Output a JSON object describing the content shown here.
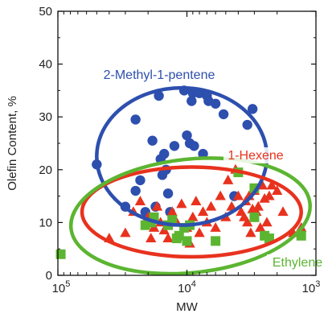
{
  "chart_data": {
    "type": "scatter",
    "xlabel": "MW",
    "ylabel": "Olefin Content, %",
    "x_scale": "log",
    "x_reversed": true,
    "xlim": [
      100000,
      1000
    ],
    "ylim": [
      0,
      50
    ],
    "x_ticks": [
      {
        "value": 100000,
        "label_base": "10",
        "label_exp": "5"
      },
      {
        "value": 10000,
        "label_base": "10",
        "label_exp": "4"
      },
      {
        "value": 1000,
        "label_base": "10",
        "label_exp": "3"
      }
    ],
    "y_ticks": [
      {
        "value": 0,
        "label": "0"
      },
      {
        "value": 10,
        "label": "10"
      },
      {
        "value": 20,
        "label": "20"
      },
      {
        "value": 30,
        "label": "30"
      },
      {
        "value": 40,
        "label": "40"
      },
      {
        "value": 50,
        "label": "50"
      }
    ],
    "grid": false,
    "series": [
      {
        "name": "2-Methyl-1-pentene",
        "marker": "circle",
        "color": "#2d4fae",
        "ellipse": {
          "cx": 11000,
          "cy": 22.5,
          "x_min": 50000,
          "x_max": 2400,
          "y_min": 9.5,
          "y_max": 35.5
        },
        "points": [
          [
            50000,
            21
          ],
          [
            30000,
            13
          ],
          [
            25000,
            29.5
          ],
          [
            25000,
            16
          ],
          [
            23000,
            18
          ],
          [
            21000,
            12
          ],
          [
            18500,
            25.5
          ],
          [
            17500,
            13
          ],
          [
            16500,
            34
          ],
          [
            16000,
            22
          ],
          [
            15500,
            19
          ],
          [
            15000,
            23
          ],
          [
            14500,
            20
          ],
          [
            14000,
            15.5
          ],
          [
            13500,
            12
          ],
          [
            12500,
            24.5
          ],
          [
            10500,
            35
          ],
          [
            10000,
            26.5
          ],
          [
            9500,
            25
          ],
          [
            9200,
            33
          ],
          [
            9000,
            34.5
          ],
          [
            8800,
            24.5
          ],
          [
            8000,
            34.5
          ],
          [
            7500,
            23
          ],
          [
            7000,
            34
          ],
          [
            6800,
            33
          ],
          [
            6000,
            32.5
          ],
          [
            5200,
            30.5
          ],
          [
            4300,
            15
          ],
          [
            3400,
            28.5
          ],
          [
            3100,
            31.5
          ]
        ]
      },
      {
        "name": "1-Hexene",
        "marker": "triangle",
        "color": "#e8321e",
        "ellipse": {
          "cx": 7800,
          "cy": 11,
          "x_min": 65000,
          "x_max": 1300,
          "y_min": 3.5,
          "y_max": 20.5
        },
        "points": [
          [
            40000,
            7
          ],
          [
            30000,
            8
          ],
          [
            26000,
            12
          ],
          [
            23000,
            14
          ],
          [
            20000,
            11
          ],
          [
            19000,
            7
          ],
          [
            18000,
            9
          ],
          [
            17000,
            13
          ],
          [
            16000,
            10
          ],
          [
            15000,
            8.5
          ],
          [
            14000,
            7
          ],
          [
            13000,
            12
          ],
          [
            12000,
            10
          ],
          [
            11000,
            13.5
          ],
          [
            10000,
            9
          ],
          [
            9500,
            6
          ],
          [
            9000,
            11
          ],
          [
            8500,
            14
          ],
          [
            8000,
            8
          ],
          [
            7500,
            12
          ],
          [
            7000,
            10
          ],
          [
            6500,
            13
          ],
          [
            6000,
            9
          ],
          [
            5500,
            15
          ],
          [
            5000,
            11
          ],
          [
            4800,
            18
          ],
          [
            4500,
            13
          ],
          [
            4200,
            20
          ],
          [
            4000,
            15
          ],
          [
            3800,
            12
          ],
          [
            3600,
            11
          ],
          [
            3500,
            14
          ],
          [
            3400,
            10
          ],
          [
            3300,
            15
          ],
          [
            3200,
            8
          ],
          [
            3100,
            12.5
          ],
          [
            3000,
            16
          ],
          [
            2900,
            12
          ],
          [
            2800,
            13
          ],
          [
            2700,
            9
          ],
          [
            2600,
            17
          ],
          [
            2500,
            14.5
          ],
          [
            2400,
            10
          ],
          [
            2300,
            15
          ],
          [
            2200,
            17
          ],
          [
            2000,
            16
          ],
          [
            1800,
            12
          ],
          [
            1500,
            8
          ],
          [
            1300,
            9
          ]
        ]
      },
      {
        "name": "Ethylene",
        "marker": "square",
        "color": "#5cb531",
        "ellipse": {
          "cx": 12000,
          "cy": 11.3,
          "x_min": 80000,
          "x_max": 1100,
          "y_min": 0.5,
          "y_max": 22
        },
        "points": [
          [
            95000,
            4
          ],
          [
            21000,
            9.5
          ],
          [
            19000,
            10
          ],
          [
            18000,
            11
          ],
          [
            14000,
            9.5
          ],
          [
            13000,
            10.5
          ],
          [
            12000,
            7
          ],
          [
            11500,
            7.5
          ],
          [
            10500,
            9
          ],
          [
            10000,
            6.5
          ],
          [
            9500,
            9.5
          ],
          [
            6000,
            6.5
          ],
          [
            4000,
            19.5
          ],
          [
            3000,
            16.5
          ],
          [
            3000,
            11
          ],
          [
            2500,
            7.5
          ],
          [
            2300,
            7
          ],
          [
            1300,
            7.5
          ]
        ]
      }
    ]
  }
}
